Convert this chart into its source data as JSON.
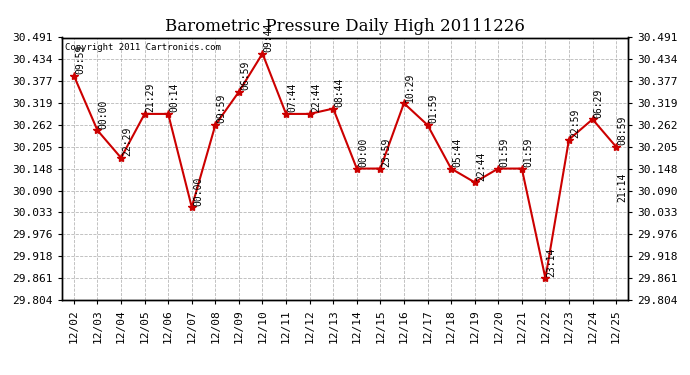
{
  "title": "Barometric Pressure Daily High 20111226",
  "copyright": "Copyright 2011 Cartronics.com",
  "x_labels": [
    "12/02",
    "12/03",
    "12/04",
    "12/05",
    "12/06",
    "12/07",
    "12/08",
    "12/09",
    "12/10",
    "12/11",
    "12/12",
    "12/13",
    "12/14",
    "12/15",
    "12/16",
    "12/17",
    "12/18",
    "12/19",
    "12/20",
    "12/21",
    "12/22",
    "12/23",
    "12/24",
    "12/25"
  ],
  "y_values": [
    30.391,
    30.248,
    30.176,
    30.291,
    30.291,
    30.047,
    30.262,
    30.349,
    30.449,
    30.291,
    30.291,
    30.305,
    30.148,
    30.148,
    30.319,
    30.262,
    30.148,
    30.112,
    30.148,
    30.148,
    29.861,
    30.224,
    30.277,
    30.205
  ],
  "time_labels": [
    "09:59",
    "00:00",
    "22:29",
    "21:29",
    "00:14",
    "00:00",
    "09:59",
    "06:59",
    "09:44",
    "07:44",
    "22:44",
    "08:44",
    "00:00",
    "23:59",
    "10:29",
    "01:59",
    "05:44",
    "22:44",
    "01:59",
    "01:59",
    "23:14",
    "22:59",
    "06:29",
    "08:59"
  ],
  "extra_label_last": "21:14",
  "y_min": 29.804,
  "y_max": 30.491,
  "y_ticks": [
    29.804,
    29.861,
    29.918,
    29.976,
    30.033,
    30.09,
    30.148,
    30.205,
    30.262,
    30.319,
    30.377,
    30.434,
    30.491
  ],
  "line_color": "#cc0000",
  "marker_color": "#cc0000",
  "bg_color": "#ffffff",
  "grid_color": "#999999",
  "title_fontsize": 12,
  "tick_fontsize": 8,
  "label_fontsize": 7
}
